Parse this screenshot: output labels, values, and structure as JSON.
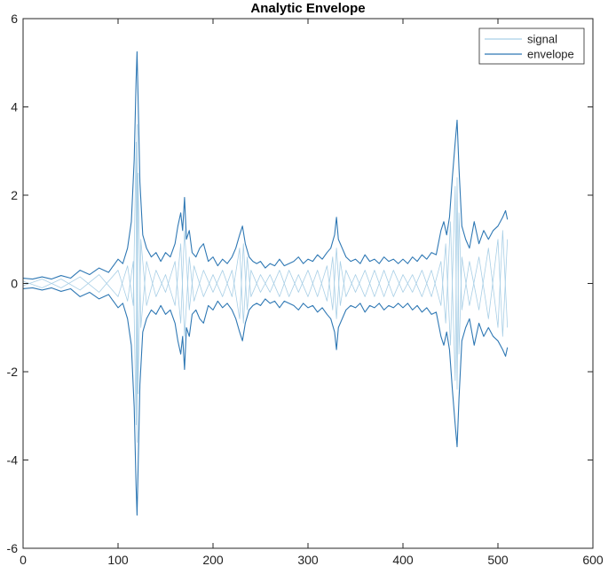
{
  "chart_data": {
    "type": "line",
    "title": "Analytic Envelope",
    "xlabel": "",
    "ylabel": "",
    "xlim": [
      0,
      600
    ],
    "ylim": [
      -6,
      6
    ],
    "xticks": [
      0,
      100,
      200,
      300,
      400,
      500,
      600
    ],
    "yticks": [
      -6,
      -4,
      -2,
      0,
      2,
      4,
      6
    ],
    "xtick_labels": [
      "0",
      "100",
      "200",
      "300",
      "400",
      "500",
      "600"
    ],
    "ytick_labels": [
      "-6",
      "-4",
      "-2",
      "0",
      "2",
      "4",
      "6"
    ],
    "grid": false,
    "legend_position": "top-right",
    "legend": [
      "signal",
      "envelope"
    ],
    "colors": {
      "signal": "#a9cfe6",
      "envelope": "#2f78b4"
    },
    "series": [
      {
        "name": "signal",
        "x": [
          0,
          20,
          40,
          60,
          80,
          100,
          110,
          116,
          119,
          120,
          121,
          124,
          130,
          140,
          150,
          160,
          166,
          170,
          175,
          180,
          190,
          200,
          210,
          220,
          228,
          232,
          236,
          240,
          250,
          260,
          270,
          280,
          290,
          300,
          310,
          320,
          326,
          330,
          334,
          340,
          350,
          360,
          370,
          380,
          390,
          400,
          410,
          420,
          430,
          440,
          445,
          450,
          455,
          457,
          459,
          462,
          470,
          480,
          490,
          500,
          505,
          510
        ],
        "y": [
          0.05,
          -0.1,
          0.1,
          -0.15,
          0.2,
          -0.3,
          0.4,
          -0.5,
          3.2,
          -3.6,
          2.5,
          -1.0,
          0.5,
          -0.3,
          0.2,
          -0.5,
          0.9,
          -1.2,
          0.6,
          -0.4,
          0.3,
          -0.2,
          0.3,
          -0.3,
          0.8,
          -0.9,
          0.6,
          -0.3,
          0.2,
          -0.2,
          0.3,
          -0.3,
          0.2,
          -0.3,
          0.3,
          -0.4,
          0.6,
          -0.8,
          0.5,
          -0.3,
          0.2,
          -0.3,
          0.3,
          -0.3,
          0.3,
          -0.2,
          0.2,
          -0.3,
          0.3,
          -0.5,
          0.9,
          -1.4,
          2.2,
          -2.4,
          1.6,
          -0.6,
          0.5,
          -0.6,
          0.8,
          -1.0,
          1.2,
          -1.0
        ]
      },
      {
        "name": "envelope",
        "x": [
          0,
          10,
          20,
          30,
          40,
          50,
          60,
          70,
          80,
          90,
          100,
          105,
          110,
          114,
          117,
          119,
          120,
          121,
          123,
          126,
          130,
          135,
          140,
          145,
          150,
          155,
          160,
          163,
          166,
          168,
          170,
          172,
          175,
          178,
          182,
          186,
          190,
          195,
          200,
          205,
          210,
          215,
          220,
          224,
          228,
          231,
          234,
          238,
          242,
          246,
          250,
          255,
          260,
          265,
          270,
          275,
          280,
          285,
          290,
          295,
          300,
          305,
          310,
          315,
          320,
          324,
          328,
          330,
          332,
          336,
          340,
          345,
          350,
          355,
          360,
          365,
          370,
          375,
          380,
          385,
          390,
          395,
          400,
          405,
          410,
          415,
          420,
          425,
          430,
          435,
          440,
          443,
          446,
          449,
          452,
          455,
          457,
          459,
          462,
          466,
          470,
          475,
          480,
          485,
          490,
          495,
          500,
          505,
          508,
          510
        ],
        "y": [
          0.12,
          0.1,
          0.15,
          0.1,
          0.18,
          0.12,
          0.3,
          0.2,
          0.35,
          0.25,
          0.55,
          0.45,
          0.8,
          1.4,
          2.8,
          4.6,
          5.25,
          4.3,
          2.3,
          1.1,
          0.8,
          0.6,
          0.7,
          0.5,
          0.7,
          0.6,
          0.9,
          1.3,
          1.6,
          1.2,
          1.95,
          1.0,
          1.2,
          0.7,
          0.6,
          0.8,
          0.9,
          0.5,
          0.6,
          0.4,
          0.55,
          0.45,
          0.6,
          0.8,
          1.1,
          1.3,
          0.9,
          0.6,
          0.5,
          0.45,
          0.5,
          0.35,
          0.45,
          0.4,
          0.55,
          0.4,
          0.45,
          0.5,
          0.6,
          0.45,
          0.55,
          0.5,
          0.65,
          0.55,
          0.7,
          0.8,
          1.1,
          1.5,
          1.0,
          0.8,
          0.6,
          0.5,
          0.55,
          0.45,
          0.65,
          0.5,
          0.55,
          0.45,
          0.6,
          0.5,
          0.55,
          0.45,
          0.55,
          0.45,
          0.6,
          0.5,
          0.65,
          0.55,
          0.7,
          0.65,
          1.2,
          1.4,
          1.1,
          1.5,
          2.4,
          3.2,
          3.7,
          2.6,
          1.3,
          1.0,
          0.8,
          1.4,
          0.9,
          1.2,
          1.0,
          1.2,
          1.3,
          1.5,
          1.65,
          1.45
        ]
      }
    ]
  }
}
